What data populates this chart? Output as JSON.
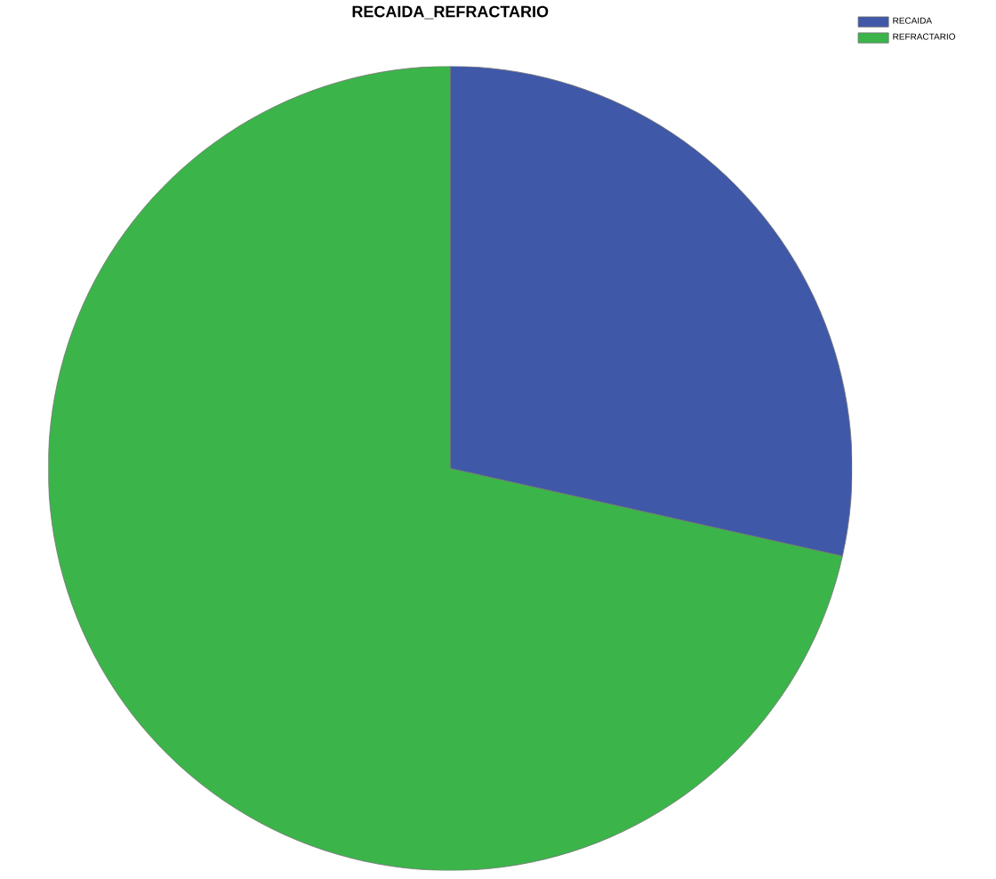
{
  "chart_data": {
    "type": "pie",
    "title": "RECAIDA_REFRACTARIO",
    "categories": [
      "RECAIDA",
      "REFRACTARIO"
    ],
    "values": [
      28.5,
      71.5
    ],
    "colors": [
      "#3f58a8",
      "#3bb54a"
    ],
    "legend": "top right"
  }
}
